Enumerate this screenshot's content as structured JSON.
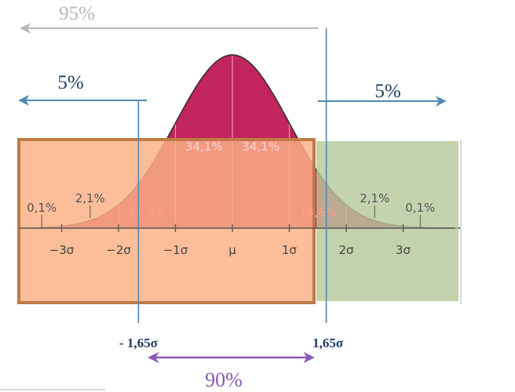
{
  "chart_data": {
    "type": "area",
    "title": "",
    "xlabel": "",
    "ylabel": "",
    "xlim": [
      -3.6,
      4.0
    ],
    "mean_label": "μ",
    "sigma_ticks": [
      {
        "value": -3,
        "label": "−3σ"
      },
      {
        "value": -2,
        "label": "−2σ"
      },
      {
        "value": -1,
        "label": "−1σ"
      },
      {
        "value": 0,
        "label": "μ"
      },
      {
        "value": 1,
        "label": "1σ"
      },
      {
        "value": 2,
        "label": "2σ"
      },
      {
        "value": 3,
        "label": "3σ"
      }
    ],
    "band_percents": [
      {
        "from": -1,
        "to": 0,
        "label": "34,1%"
      },
      {
        "from": 0,
        "to": 1,
        "label": "34,1%"
      },
      {
        "from": -2,
        "to": -1,
        "label": "13,6%"
      },
      {
        "from": 1,
        "to": 2,
        "label": "13,6%"
      },
      {
        "from": -3,
        "to": -2,
        "label": "2,1%"
      },
      {
        "from": 2,
        "to": 3,
        "label": "2,1%"
      },
      {
        "from": -3.6,
        "to": -3,
        "label": "0,1%"
      },
      {
        "from": 3,
        "to": 4.0,
        "label": "0,1%"
      }
    ],
    "critical_values": [
      {
        "value": -1.65,
        "label": "- 1,65σ"
      },
      {
        "value": 1.65,
        "label": "1,65σ"
      }
    ],
    "areas": {
      "left_tail": "5%",
      "right_tail": "5%",
      "middle": "90%",
      "upper": "95%"
    },
    "colors": {
      "curve_fill": "#c2245e",
      "left_box": "#fbb286",
      "left_box_border": "#c07a46",
      "right_box": "#b7c89c",
      "arrow_blue": "#4f88b4",
      "arrow_gray": "#b8b8b8",
      "arrow_purple": "#8b58b6",
      "crit_text": "#1f3d64",
      "tail_text": "#1f3d64"
    }
  }
}
